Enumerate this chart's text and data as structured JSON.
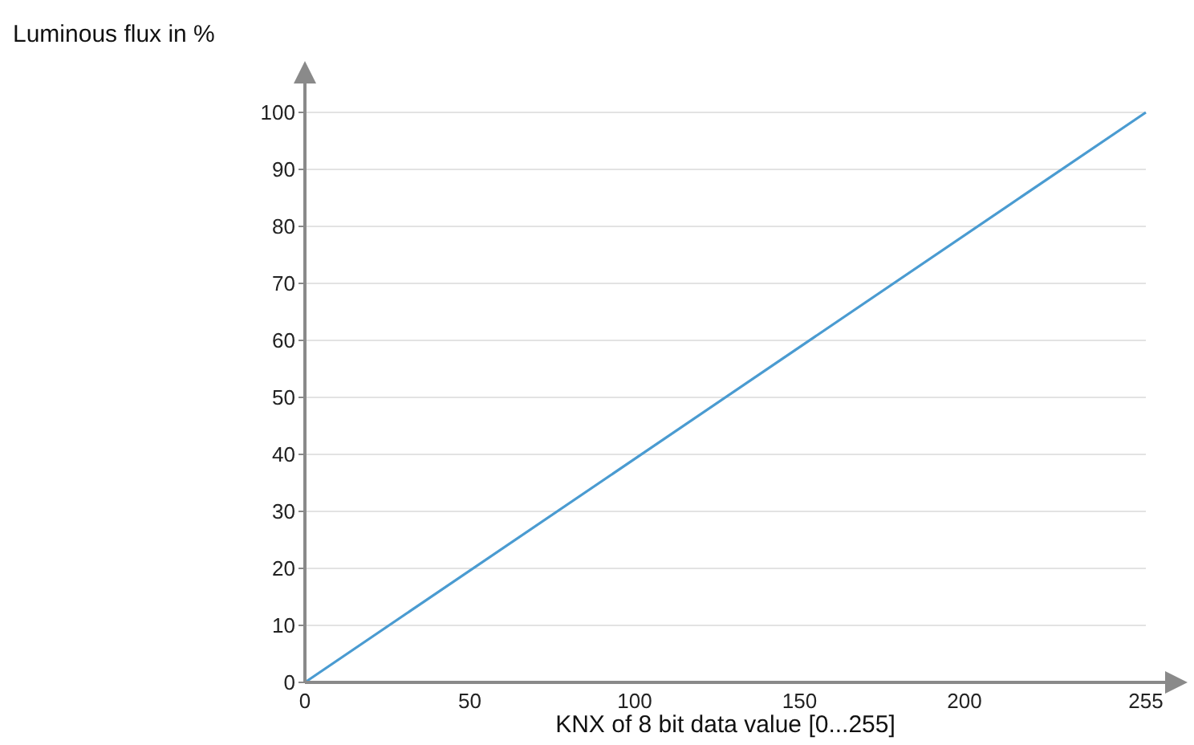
{
  "chart_data": {
    "type": "line",
    "xlabel": "KNX of 8 bit data value [0...255]",
    "ylabel": "Luminous flux in %",
    "x": [
      0,
      255
    ],
    "series": [
      {
        "color": "#4a9bd1",
        "values": [
          0,
          100
        ]
      }
    ],
    "xlim": [
      0,
      255
    ],
    "xticks": [
      0,
      50,
      100,
      150,
      200,
      255
    ],
    "ylim": [
      0,
      100
    ],
    "yticks": [
      0,
      10,
      20,
      30,
      40,
      50,
      60,
      70,
      80,
      90,
      100
    ],
    "grid": "y",
    "marker": "none",
    "line_style": "solid"
  }
}
